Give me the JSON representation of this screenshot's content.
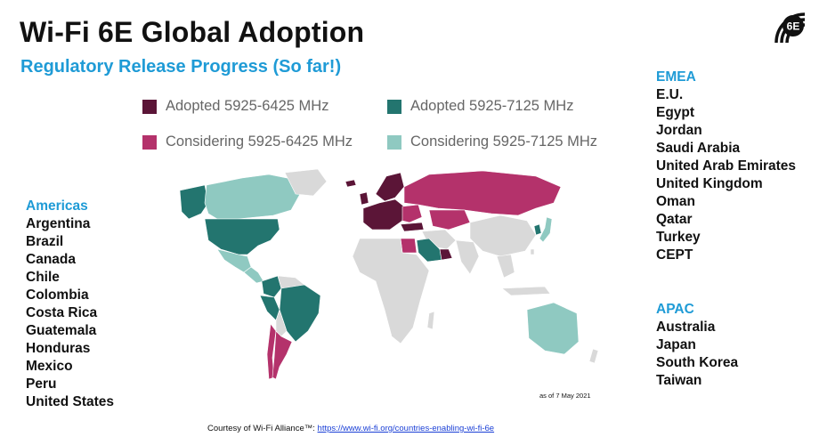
{
  "title": "Wi-Fi 6E Global Adoption",
  "subtitle": "Regulatory Release Progress (So far!)",
  "logo_text": "6E",
  "legend": [
    {
      "label": "Adopted 5925-6425 MHz",
      "color": "#5b1537"
    },
    {
      "label": "Adopted 5925-7125 MHz",
      "color": "#23756f"
    },
    {
      "label": "Considering 5925-6425 MHz",
      "color": "#b4326b"
    },
    {
      "label": "Considering 5925-7125 MHz",
      "color": "#8fc9c1"
    }
  ],
  "colors": {
    "no_data": "#d9d9d9",
    "heading_blue": "#1f9bd6",
    "link_blue": "#1a3fd6"
  },
  "regions": {
    "americas": {
      "heading": "Americas",
      "countries": [
        "Argentina",
        "Brazil",
        "Canada",
        "Chile",
        "Colombia",
        "Costa Rica",
        "Guatemala",
        "Honduras",
        "Mexico",
        "Peru",
        "United States"
      ]
    },
    "emea": {
      "heading": "EMEA",
      "countries": [
        "E.U.",
        "Egypt",
        "Jordan",
        "Saudi Arabia",
        "United Arab Emirates",
        "United Kingdom",
        "Oman",
        "Qatar",
        "Turkey",
        "CEPT"
      ]
    },
    "apac": {
      "heading": "APAC",
      "countries": [
        "Australia",
        "Japan",
        "South Korea",
        "Taiwan"
      ]
    }
  },
  "as_of": "as of 7 May 2021",
  "footer": {
    "text": "Courtesy of Wi-Fi Alliance™: ",
    "link": "https://www.wi-fi.org/countries-enabling-wi-fi-6e"
  }
}
